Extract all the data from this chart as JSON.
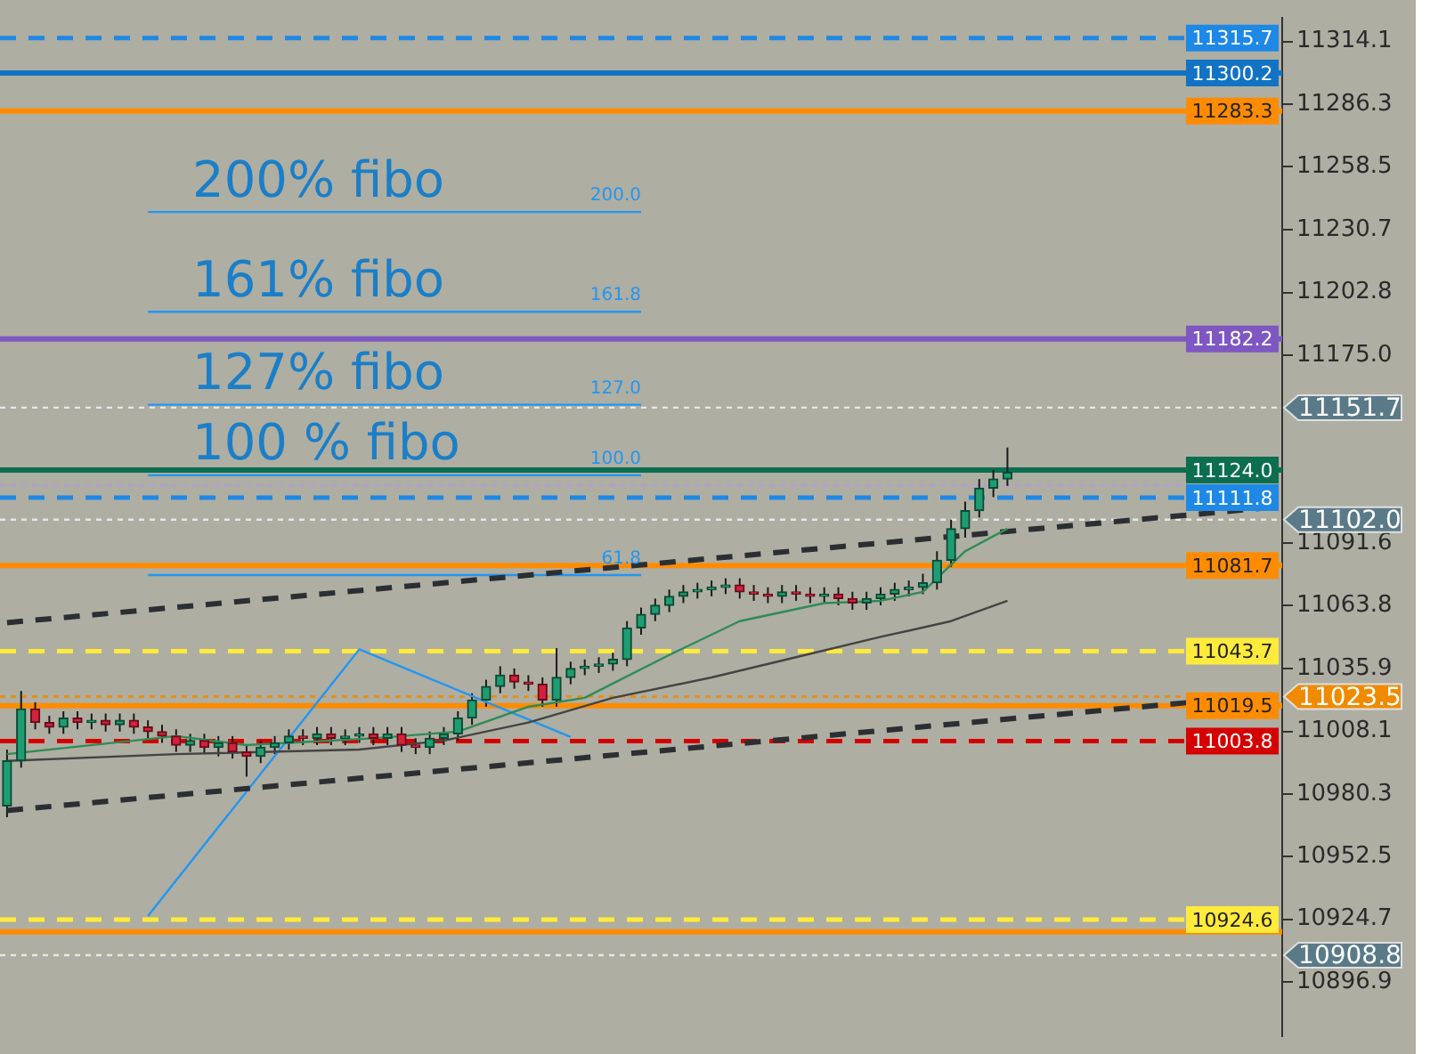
{
  "chart_data": {
    "type": "candlestick",
    "tick_labels": "y",
    "categories": [
      null,
      null,
      null,
      null,
      null,
      null,
      null,
      null,
      null,
      null,
      null,
      null,
      null,
      null,
      null,
      null,
      null,
      null,
      null,
      null,
      null,
      null,
      null,
      null,
      null,
      null,
      null,
      null,
      null,
      null,
      null,
      null,
      null,
      null,
      null,
      null,
      null,
      null,
      null,
      null,
      null,
      null,
      null,
      null,
      null,
      null,
      null,
      null,
      null,
      null,
      null,
      null,
      null,
      null,
      null,
      null,
      null,
      null,
      null,
      null,
      null,
      null,
      null,
      null,
      null,
      null,
      null,
      null,
      null,
      null,
      null,
      null,
      null,
      null,
      null,
      null,
      null,
      null,
      null,
      null,
      null,
      null,
      null,
      null,
      null,
      null,
      null,
      null,
      null,
      null,
      null
    ],
    "ohlc": [
      [
        10975,
        11000,
        10970,
        10995
      ],
      [
        10995,
        11026,
        10992,
        11018
      ],
      [
        11018,
        11021,
        11009,
        11012
      ],
      [
        11012,
        11015,
        11007,
        11010
      ],
      [
        11010,
        11017,
        11007,
        11014
      ],
      [
        11014,
        11017,
        11009,
        11012
      ],
      [
        11012,
        11016,
        11009,
        11013
      ],
      [
        11013,
        11016,
        11008,
        11011
      ],
      [
        11011,
        11016,
        11008,
        11013
      ],
      [
        11013,
        11016,
        11007,
        11010
      ],
      [
        11010,
        11013,
        11005,
        11008
      ],
      [
        11008,
        11011,
        11003,
        11006
      ],
      [
        11006,
        11009,
        10999,
        11002
      ],
      [
        11002,
        11007,
        10999,
        11004
      ],
      [
        11004,
        11007,
        10998,
        11001
      ],
      [
        11001,
        11006,
        10997,
        11003
      ],
      [
        11003,
        11006,
        10996,
        10999
      ],
      [
        10999,
        11002,
        10988,
        10997
      ],
      [
        10997,
        11004,
        10994,
        11001
      ],
      [
        11001,
        11006,
        10998,
        11003
      ],
      [
        11003,
        11009,
        11000,
        11006
      ],
      [
        11006,
        11009,
        11002,
        11005
      ],
      [
        11005,
        11010,
        11002,
        11007
      ],
      [
        11007,
        11010,
        11002,
        11005
      ],
      [
        11005,
        11009,
        11002,
        11006
      ],
      [
        11006,
        11010,
        11003,
        11007
      ],
      [
        11007,
        11010,
        11002,
        11005
      ],
      [
        11005,
        11010,
        11002,
        11007
      ],
      [
        11007,
        11010,
        10999,
        11002
      ],
      [
        11002,
        11005,
        10998,
        11001
      ],
      [
        11001,
        11008,
        10998,
        11005
      ],
      [
        11005,
        11010,
        11002,
        11007
      ],
      [
        11007,
        11017,
        11004,
        11014
      ],
      [
        11014,
        11025,
        11011,
        11022
      ],
      [
        11022,
        11031,
        11019,
        11028
      ],
      [
        11028,
        11037,
        11025,
        11033
      ],
      [
        11033,
        11036,
        11027,
        11030
      ],
      [
        11030,
        11033,
        11026,
        11029
      ],
      [
        11029,
        11032,
        11019,
        11022
      ],
      [
        11022,
        11045,
        11019,
        11032
      ],
      [
        11032,
        11039,
        11029,
        11036
      ],
      [
        11036,
        11040,
        11033,
        11037
      ],
      [
        11037,
        11041,
        11034,
        11038
      ],
      [
        11038,
        11043,
        11035,
        11040
      ],
      [
        11040,
        11057,
        11037,
        11054
      ],
      [
        11054,
        11063,
        11051,
        11060
      ],
      [
        11060,
        11067,
        11057,
        11064
      ],
      [
        11064,
        11071,
        11061,
        11068
      ],
      [
        11068,
        11073,
        11065,
        11070
      ],
      [
        11070,
        11074,
        11067,
        11071
      ],
      [
        11071,
        11075,
        11068,
        11072
      ],
      [
        11072,
        11076,
        11069,
        11073
      ],
      [
        11073,
        11076,
        11067,
        11070
      ],
      [
        11070,
        11073,
        11066,
        11069
      ],
      [
        11069,
        11072,
        11065,
        11068
      ],
      [
        11068,
        11073,
        11065,
        11070
      ],
      [
        11070,
        11073,
        11066,
        11069
      ],
      [
        11069,
        11072,
        11065,
        11068
      ],
      [
        11068,
        11072,
        11065,
        11069
      ],
      [
        11069,
        11072,
        11064,
        11067
      ],
      [
        11067,
        11070,
        11062,
        11065
      ],
      [
        11065,
        11070,
        11062,
        11067
      ],
      [
        11067,
        11072,
        11064,
        11069
      ],
      [
        11069,
        11074,
        11066,
        11071
      ],
      [
        11071,
        11075,
        11068,
        11072
      ],
      [
        11072,
        11078,
        11069,
        11074
      ],
      [
        11074,
        11088,
        11071,
        11084
      ],
      [
        11084,
        11102,
        11081,
        11098
      ],
      [
        11098,
        11110,
        11094,
        11106
      ],
      [
        11106,
        11120,
        11103,
        11116
      ],
      [
        11116,
        11124,
        11112,
        11120
      ],
      [
        11120,
        11134,
        11117,
        11123
      ],
      null,
      null,
      null,
      null,
      null,
      null,
      null,
      null,
      null,
      null,
      null,
      null,
      null,
      null,
      null,
      null,
      null,
      null,
      null
    ],
    "series": [
      {
        "type": "line",
        "color": "#2e8b57",
        "values": [
          10998,
          null,
          null,
          null,
          null,
          null,
          null,
          null,
          null,
          null,
          null,
          null,
          11006,
          null,
          null,
          null,
          null,
          11002,
          null,
          null,
          null,
          null,
          null,
          null,
          null,
          null,
          11005,
          null,
          null,
          null,
          null,
          null,
          11008,
          null,
          null,
          null,
          null,
          11019,
          null,
          null,
          null,
          11023,
          null,
          null,
          null,
          null,
          null,
          11042,
          null,
          null,
          null,
          null,
          11057,
          null,
          null,
          null,
          null,
          null,
          11065,
          null,
          null,
          null,
          11066,
          null,
          null,
          11070,
          null,
          null,
          11088,
          null,
          null,
          11098,
          null,
          null,
          null,
          null,
          null,
          null,
          null,
          null,
          null,
          null,
          null,
          null,
          null,
          null,
          null,
          null,
          null,
          null,
          null
        ]
      },
      {
        "type": "line",
        "color": "#444444",
        "values": [
          10995,
          null,
          null,
          null,
          null,
          null,
          null,
          null,
          null,
          null,
          null,
          null,
          10998,
          null,
          null,
          null,
          null,
          null,
          null,
          null,
          null,
          null,
          null,
          null,
          null,
          11000,
          null,
          null,
          null,
          null,
          null,
          11004,
          null,
          null,
          null,
          null,
          null,
          11012,
          null,
          null,
          null,
          null,
          null,
          11023,
          null,
          null,
          null,
          null,
          null,
          null,
          11032,
          null,
          null,
          null,
          null,
          null,
          11041,
          null,
          null,
          null,
          null,
          null,
          11050,
          null,
          null,
          null,
          null,
          11057,
          null,
          null,
          null,
          11066,
          null,
          null,
          null,
          null,
          null,
          null,
          null,
          null,
          null,
          null,
          null,
          null,
          null,
          null,
          null,
          null,
          null,
          null,
          null
        ]
      },
      {
        "type": "line",
        "color": "#2b2f33",
        "line_style": "dashed",
        "values": [
          11056.3,
          null,
          null,
          null,
          null,
          null,
          null,
          null,
          null,
          null,
          null,
          null,
          null,
          null,
          null,
          null,
          null,
          null,
          null,
          null,
          null,
          null,
          null,
          null,
          null,
          null,
          null,
          null,
          null,
          null,
          null,
          null,
          null,
          null,
          null,
          null,
          null,
          null,
          null,
          null,
          null,
          null,
          null,
          null,
          null,
          null,
          null,
          null,
          null,
          null,
          null,
          null,
          null,
          null,
          null,
          null,
          null,
          null,
          null,
          null,
          null,
          null,
          null,
          null,
          null,
          null,
          null,
          null,
          null,
          null,
          null,
          null,
          null,
          null,
          null,
          null,
          null,
          null,
          null,
          null,
          null,
          null,
          null,
          null,
          null,
          null,
          null,
          null,
          null,
          null,
          11107.6
        ]
      },
      {
        "type": "line",
        "color": "#2b2f33",
        "line_style": "dashed",
        "values": [
          10973.0,
          null,
          null,
          null,
          null,
          null,
          null,
          null,
          null,
          null,
          null,
          null,
          null,
          null,
          null,
          null,
          null,
          null,
          null,
          null,
          null,
          null,
          null,
          null,
          null,
          null,
          null,
          null,
          null,
          null,
          null,
          null,
          null,
          null,
          null,
          null,
          null,
          null,
          null,
          null,
          null,
          null,
          null,
          null,
          null,
          null,
          null,
          null,
          null,
          null,
          null,
          null,
          null,
          null,
          null,
          null,
          null,
          null,
          null,
          null,
          null,
          null,
          null,
          null,
          null,
          null,
          null,
          null,
          null,
          null,
          null,
          null,
          null,
          null,
          null,
          null,
          null,
          null,
          null,
          null,
          null,
          null,
          null,
          null,
          null,
          null,
          null,
          null,
          null,
          null,
          11024.4
        ]
      },
      {
        "type": "line",
        "color": "#2196f3",
        "values": [
          null,
          null,
          null,
          null,
          null,
          null,
          null,
          null,
          null,
          null,
          10926.2,
          null,
          null,
          null,
          null,
          null,
          null,
          null,
          null,
          null,
          null,
          null,
          null,
          null,
          null,
          11044.5,
          null,
          null,
          null,
          null,
          null,
          null,
          null,
          null,
          null,
          null,
          null,
          null,
          null,
          null,
          11005.6,
          null,
          null,
          null,
          null,
          null,
          null,
          null,
          null,
          null,
          null,
          null,
          null,
          null,
          null,
          null,
          null,
          null,
          null,
          null,
          null,
          null,
          null,
          null,
          null,
          null,
          null,
          null,
          null,
          null,
          null,
          null,
          null,
          null,
          null,
          null,
          null,
          null,
          null,
          null,
          null,
          null,
          null,
          null,
          null,
          null,
          null,
          null,
          null,
          null,
          null
        ]
      },
      {
        "type": "line",
        "name": "200.0",
        "color": "#2196f3",
        "values": [
          null,
          null,
          null,
          null,
          null,
          null,
          null,
          null,
          null,
          null,
          11238.5,
          null,
          null,
          null,
          null,
          null,
          null,
          null,
          null,
          null,
          null,
          null,
          null,
          null,
          null,
          null,
          null,
          null,
          null,
          null,
          null,
          null,
          null,
          null,
          null,
          null,
          null,
          null,
          null,
          null,
          null,
          null,
          null,
          null,
          null,
          11238.5,
          null,
          null,
          null,
          null,
          null,
          null,
          null,
          null,
          null,
          null,
          null,
          null,
          null,
          null,
          null,
          null,
          null,
          null,
          null,
          null,
          null,
          null,
          null,
          null,
          null,
          null,
          null,
          null,
          null,
          null,
          null,
          null,
          null,
          null,
          null,
          null,
          null,
          null,
          null,
          null,
          null,
          null,
          null,
          null,
          null
        ]
      },
      {
        "type": "line",
        "name": "161.8",
        "color": "#2196f3",
        "values": [
          null,
          null,
          null,
          null,
          null,
          null,
          null,
          null,
          null,
          null,
          11194.2,
          null,
          null,
          null,
          null,
          null,
          null,
          null,
          null,
          null,
          null,
          null,
          null,
          null,
          null,
          null,
          null,
          null,
          null,
          null,
          null,
          null,
          null,
          null,
          null,
          null,
          null,
          null,
          null,
          null,
          null,
          null,
          null,
          null,
          null,
          11194.2,
          null,
          null,
          null,
          null,
          null,
          null,
          null,
          null,
          null,
          null,
          null,
          null,
          null,
          null,
          null,
          null,
          null,
          null,
          null,
          null,
          null,
          null,
          null,
          null,
          null,
          null,
          null,
          null,
          null,
          null,
          null,
          null,
          null,
          null,
          null,
          null,
          null,
          null,
          null,
          null,
          null,
          null,
          null,
          null,
          null
        ]
      },
      {
        "type": "line",
        "name": "127.0",
        "color": "#2196f3",
        "values": [
          null,
          null,
          null,
          null,
          null,
          null,
          null,
          null,
          null,
          null,
          11153.0,
          null,
          null,
          null,
          null,
          null,
          null,
          null,
          null,
          null,
          null,
          null,
          null,
          null,
          null,
          null,
          null,
          null,
          null,
          null,
          null,
          null,
          null,
          null,
          null,
          null,
          null,
          null,
          null,
          null,
          null,
          null,
          null,
          null,
          null,
          11153.0,
          null,
          null,
          null,
          null,
          null,
          null,
          null,
          null,
          null,
          null,
          null,
          null,
          null,
          null,
          null,
          null,
          null,
          null,
          null,
          null,
          null,
          null,
          null,
          null,
          null,
          null,
          null,
          null,
          null,
          null,
          null,
          null,
          null,
          null,
          null,
          null,
          null,
          null,
          null,
          null,
          null,
          null,
          null,
          null,
          null
        ]
      },
      {
        "type": "line",
        "name": "100.0",
        "color": "#2196f3",
        "values": [
          null,
          null,
          null,
          null,
          null,
          null,
          null,
          null,
          null,
          null,
          11121.7,
          null,
          null,
          null,
          null,
          null,
          null,
          null,
          null,
          null,
          null,
          null,
          null,
          null,
          null,
          null,
          null,
          null,
          null,
          null,
          null,
          null,
          null,
          null,
          null,
          null,
          null,
          null,
          null,
          null,
          null,
          null,
          null,
          null,
          null,
          11121.7,
          null,
          null,
          null,
          null,
          null,
          null,
          null,
          null,
          null,
          null,
          null,
          null,
          null,
          null,
          null,
          null,
          null,
          null,
          null,
          null,
          null,
          null,
          null,
          null,
          null,
          null,
          null,
          null,
          null,
          null,
          null,
          null,
          null,
          null,
          null,
          null,
          null,
          null,
          null,
          null,
          null,
          null,
          null,
          null,
          null
        ]
      },
      {
        "type": "line",
        "name": "61.8",
        "color": "#2196f3",
        "values": [
          null,
          null,
          null,
          null,
          null,
          null,
          null,
          null,
          null,
          null,
          11077.4,
          null,
          null,
          null,
          null,
          null,
          null,
          null,
          null,
          null,
          null,
          null,
          null,
          null,
          null,
          null,
          null,
          null,
          null,
          null,
          null,
          null,
          null,
          null,
          null,
          null,
          null,
          null,
          null,
          null,
          null,
          null,
          null,
          null,
          null,
          11077.4,
          null,
          null,
          null,
          null,
          null,
          null,
          null,
          null,
          null,
          null,
          null,
          null,
          null,
          null,
          null,
          null,
          null,
          null,
          null,
          null,
          null,
          null,
          null,
          null,
          null,
          null,
          null,
          null,
          null,
          null,
          null,
          null,
          null,
          null,
          null,
          null,
          null,
          null,
          null,
          null,
          null,
          null,
          null,
          null,
          null
        ]
      }
    ],
    "annotations": [
      "200% fibo",
      "161% fibo",
      "127% fibo",
      "100 % fibo"
    ],
    "ref_lines": [
      {
        "axis": "y",
        "value": 11315.7,
        "label": "11315.7",
        "color": "#1e88e5",
        "line_style": "dashed"
      },
      {
        "axis": "y",
        "value": 11300.2,
        "label": "11300.2",
        "color": "#1273c4",
        "line_style": "solid"
      },
      {
        "axis": "y",
        "value": 11283.3,
        "label": "11283.3",
        "color": "#ff8c00",
        "line_style": "solid"
      },
      {
        "axis": "y",
        "value": 11182.2,
        "label": "11182.2",
        "color": "#7e57c2",
        "line_style": "solid"
      },
      {
        "axis": "y",
        "value": 11151.7,
        "label": "11151.7",
        "color": "#e8e8e8",
        "line_style": "dotted"
      },
      {
        "axis": "y",
        "value": 11124.0,
        "label": "11124.0",
        "color": "#0b6e4f",
        "line_style": "solid"
      },
      {
        "axis": "y",
        "value": 11117.2,
        "color": "#b39ddb",
        "line_style": "dotted"
      },
      {
        "axis": "y",
        "value": 11111.8,
        "label": "11111.8",
        "color": "#1e88e5",
        "line_style": "dashed"
      },
      {
        "axis": "y",
        "value": 11102.0,
        "label": "11102.0",
        "color": "#e8e8e8",
        "line_style": "dotted"
      },
      {
        "axis": "y",
        "value": 11081.7,
        "label": "11081.7",
        "color": "#ff8c00",
        "line_style": "solid"
      },
      {
        "axis": "y",
        "value": 11043.7,
        "label": "11043.7",
        "color": "#ffeb3b",
        "line_style": "dashed"
      },
      {
        "axis": "y",
        "value": 11023.5,
        "label": "11023.5",
        "color": "#f08a00",
        "line_style": "dotted"
      },
      {
        "axis": "y",
        "value": 11019.5,
        "label": "11019.5",
        "color": "#ff8c00",
        "line_style": "solid"
      },
      {
        "axis": "y",
        "value": 11003.8,
        "label": "11003.8",
        "color": "#d50000",
        "line_style": "dashed"
      },
      {
        "axis": "y",
        "value": 10924.6,
        "label": "10924.6",
        "color": "#ffeb3b",
        "line_style": "dashed"
      },
      {
        "axis": "y",
        "value": 10919.2,
        "color": "#ff8c00",
        "line_style": "solid"
      },
      {
        "axis": "y",
        "value": 10908.8,
        "label": "10908.8",
        "color": "#e8e8e8",
        "line_style": "dotted"
      }
    ],
    "ylim": [
      10872.7,
      11324.8
    ],
    "yticks": [
      11314.1,
      11286.3,
      11258.5,
      11230.7,
      11202.8,
      {
        "value": 11175,
        "label": "11175.0"
      },
      11091.6,
      11063.8,
      11035.9,
      11008.1,
      10980.3,
      10952.5,
      10924.7,
      10896.9
    ],
    "grid": false,
    "legend": false
  }
}
